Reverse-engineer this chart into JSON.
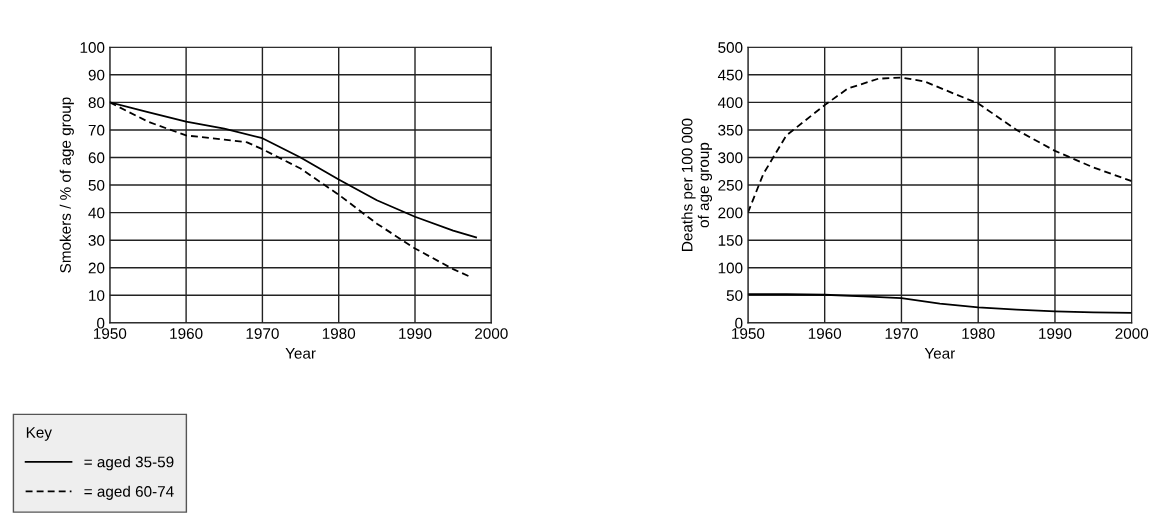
{
  "chart_data": [
    {
      "type": "line",
      "xlabel": "Year",
      "ylabel": "Smokers / % of age group",
      "xlim": [
        1950,
        2000
      ],
      "xticks": [
        1950,
        1960,
        1970,
        1980,
        1990,
        2000
      ],
      "ylim": [
        0,
        100
      ],
      "yticks": [
        0,
        10,
        20,
        30,
        40,
        50,
        60,
        70,
        80,
        90,
        100
      ],
      "grid": true,
      "legend": "bottom left",
      "legend_title": "Key",
      "series": [
        {
          "name": "= aged 35-59",
          "color": "#000000",
          "line_style": "solid",
          "x": [
            1950,
            1955,
            1960,
            1965,
            1970,
            1975,
            1980,
            1985,
            1990,
            1995,
            1998
          ],
          "values": [
            80,
            76.5,
            73,
            70.5,
            67,
            60,
            52,
            44.5,
            38.5,
            33.5,
            31
          ]
        },
        {
          "name": "= aged 60-74",
          "color": "#000000",
          "line_style": "dashed",
          "x": [
            1950,
            1955,
            1960,
            1965,
            1968,
            1970,
            1975,
            1980,
            1985,
            1990,
            1995,
            1997
          ],
          "values": [
            80,
            73,
            68,
            66.5,
            65.5,
            63,
            56,
            46.5,
            36,
            27,
            19.5,
            17
          ]
        }
      ]
    },
    {
      "type": "line",
      "xlabel": "Year",
      "ylabel": "Deaths per 100 000\nof age group",
      "xlim": [
        1950,
        2000
      ],
      "xticks": [
        1950,
        1960,
        1970,
        1980,
        1990,
        2000
      ],
      "ylim": [
        0,
        500
      ],
      "yticks": [
        0,
        50,
        100,
        150,
        200,
        250,
        300,
        350,
        400,
        450,
        500
      ],
      "grid": true,
      "series": [
        {
          "color": "#000000",
          "line_style": "solid",
          "x": [
            1950,
            1955,
            1960,
            1965,
            1970,
            1975,
            1980,
            1985,
            1990,
            1995,
            2000
          ],
          "values": [
            52,
            52,
            51,
            48,
            45,
            35,
            28,
            24,
            21,
            19,
            18
          ]
        },
        {
          "color": "#000000",
          "line_style": "dashed",
          "x": [
            1950,
            1952,
            1955,
            1960,
            1963,
            1967,
            1970,
            1973,
            1977,
            1980,
            1985,
            1990,
            1995,
            2000
          ],
          "values": [
            200,
            270,
            340,
            395,
            425,
            443,
            445,
            438,
            415,
            398,
            350,
            312,
            282,
            257
          ]
        }
      ]
    }
  ]
}
